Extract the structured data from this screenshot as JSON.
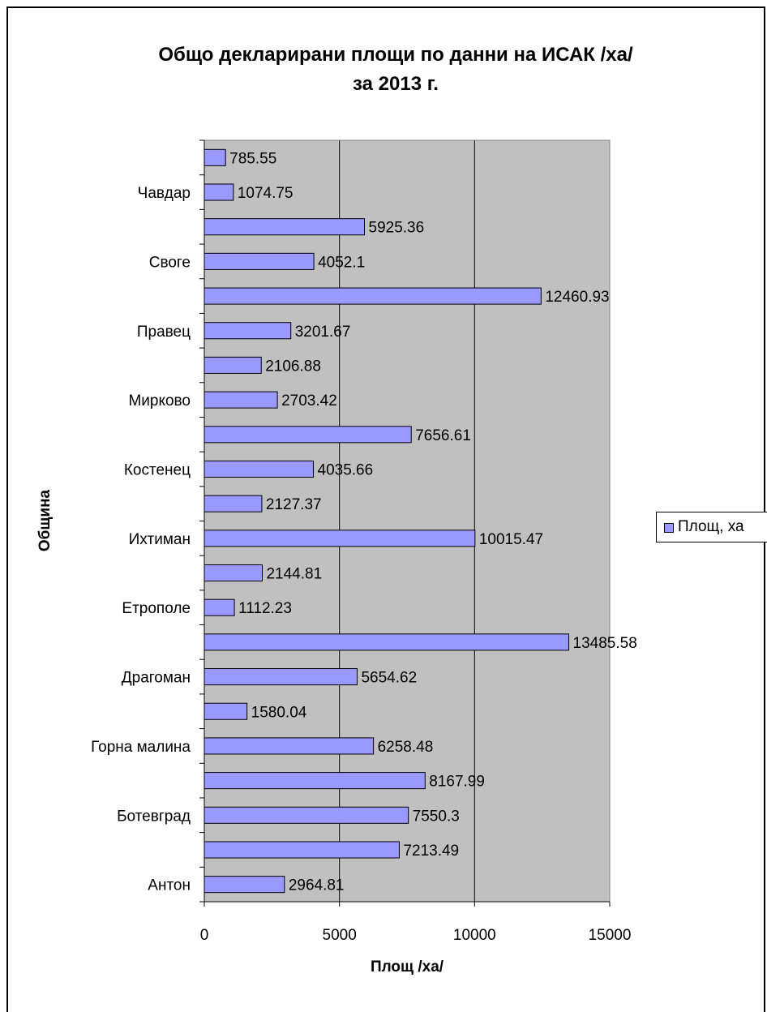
{
  "chart_data": {
    "type": "bar",
    "orientation": "horizontal",
    "title": [
      "Общо декларирани площи по данни на ИСАК /ха/",
      "за 2013 г."
    ],
    "xlabel": "Площ /ха/",
    "ylabel": "Община",
    "xlim": [
      0,
      15000
    ],
    "xticks": [
      "0",
      "5000",
      "10000",
      "15000"
    ],
    "grid": true,
    "legend_position": "right",
    "categories": [
      "Антон",
      "",
      "Ботевград",
      "",
      "Горна малина",
      "",
      "Драгоман",
      "",
      "Етрополе",
      "",
      "Ихтиман",
      "",
      "Костенец",
      "",
      "Мирково",
      "",
      "Правец",
      "",
      "Своге",
      "",
      "Чавдар",
      ""
    ],
    "series": [
      {
        "name": "Площ, ха",
        "values": [
          2964.81,
          7213.49,
          7550.3,
          8167.99,
          6258.48,
          1580.04,
          5654.62,
          13485.58,
          1112.23,
          2144.81,
          10015.47,
          2127.37,
          4035.66,
          7656.61,
          2703.42,
          2106.88,
          3201.67,
          12460.93,
          4052.1,
          5925.36,
          1074.75,
          785.55
        ]
      }
    ],
    "data_labels": [
      "2964.81",
      "7213.49",
      "7550.3",
      "8167.99",
      "6258.48",
      "1580.04",
      "5654.62",
      "13485.58",
      "1112.23",
      "2144.81",
      "10015.47",
      "2127.37",
      "4035.66",
      "7656.61",
      "2703.42",
      "2106.88",
      "3201.67",
      "12460.93",
      "4052.1",
      "5925.36",
      "1074.75",
      "785.55"
    ],
    "colors": {
      "bar": "#9999ff",
      "plot_background": "#c0c0c0",
      "grid": "#000000"
    }
  }
}
